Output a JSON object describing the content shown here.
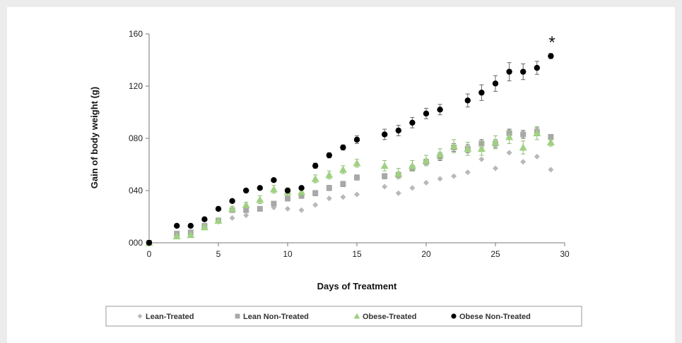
{
  "chart_data": {
    "type": "scatter",
    "xlabel": "Days of Treatment",
    "ylabel": "Gain of body weight (g)",
    "xlim": [
      0,
      30
    ],
    "ylim": [
      0,
      160
    ],
    "xticks": [
      "0",
      "5",
      "10",
      "15",
      "20",
      "25",
      "30"
    ],
    "yticks": [
      "000",
      "040",
      "080",
      "120",
      "160"
    ],
    "grid": false,
    "legend_position": "bottom",
    "annotation": "*",
    "series": [
      {
        "name": "Lean-Treated",
        "marker": "diamond",
        "color": "#b8b8b8",
        "x": [
          0,
          2,
          3,
          4,
          5,
          6,
          7,
          8,
          9,
          10,
          11,
          12,
          13,
          14,
          15,
          17,
          18,
          19,
          20,
          21,
          22,
          23,
          24,
          25,
          26,
          27,
          28,
          29
        ],
        "y": [
          0,
          6,
          7,
          12,
          16,
          19,
          21,
          26,
          27,
          26,
          25,
          29,
          34,
          35,
          37,
          43,
          38,
          42,
          46,
          49,
          51,
          54,
          64,
          57,
          69,
          62,
          66,
          56
        ]
      },
      {
        "name": "Lean Non-Treated",
        "marker": "square",
        "color": "#a8a8a8",
        "x": [
          0,
          2,
          3,
          4,
          5,
          6,
          7,
          8,
          9,
          10,
          11,
          12,
          13,
          14,
          15,
          17,
          18,
          19,
          20,
          21,
          22,
          23,
          24,
          25,
          26,
          27,
          28,
          29
        ],
        "y": [
          0,
          7,
          8,
          13,
          17,
          25,
          25,
          26,
          30,
          34,
          36,
          38,
          42,
          45,
          50,
          51,
          52,
          57,
          62,
          66,
          73,
          72,
          76,
          76,
          84,
          83,
          85,
          81
        ],
        "error": [
          0,
          1,
          1,
          1,
          1,
          1,
          1,
          1,
          1,
          2,
          2,
          2,
          2,
          2,
          2,
          2,
          2,
          2,
          2,
          3,
          3,
          3,
          3,
          3,
          3,
          3,
          3,
          2
        ]
      },
      {
        "name": "Obese-Treated",
        "marker": "triangle",
        "color": "#9fd181",
        "x": [
          0,
          2,
          3,
          4,
          5,
          6,
          7,
          8,
          9,
          10,
          11,
          12,
          13,
          14,
          15,
          17,
          18,
          19,
          20,
          21,
          22,
          23,
          24,
          25,
          26,
          27,
          28,
          29
        ],
        "y": [
          0,
          5,
          6,
          12,
          17,
          26,
          29,
          33,
          41,
          39,
          39,
          49,
          52,
          56,
          61,
          59,
          53,
          59,
          63,
          68,
          74,
          72,
          72,
          77,
          81,
          73,
          84,
          77
        ],
        "error": [
          0,
          1,
          1,
          2,
          2,
          2,
          2,
          3,
          3,
          3,
          3,
          3,
          3,
          3,
          3,
          4,
          4,
          4,
          4,
          4,
          5,
          5,
          5,
          5,
          5,
          5,
          5,
          3
        ]
      },
      {
        "name": "Obese Non-Treated",
        "marker": "circle",
        "color": "#000000",
        "x": [
          0,
          2,
          3,
          4,
          5,
          6,
          7,
          8,
          9,
          10,
          11,
          12,
          13,
          14,
          15,
          17,
          18,
          19,
          20,
          21,
          23,
          24,
          25,
          26,
          27,
          28,
          29
        ],
        "y": [
          0,
          13,
          13,
          18,
          26,
          32,
          40,
          42,
          48,
          40,
          42,
          59,
          67,
          73,
          79,
          83,
          86,
          92,
          99,
          102,
          109,
          115,
          122,
          131,
          131,
          134,
          143
        ],
        "error": [
          0,
          1,
          1,
          1,
          1,
          1,
          1,
          1,
          1,
          1,
          1,
          2,
          2,
          2,
          3,
          4,
          4,
          4,
          4,
          4,
          5,
          6,
          6,
          7,
          6,
          5,
          2
        ]
      }
    ]
  }
}
